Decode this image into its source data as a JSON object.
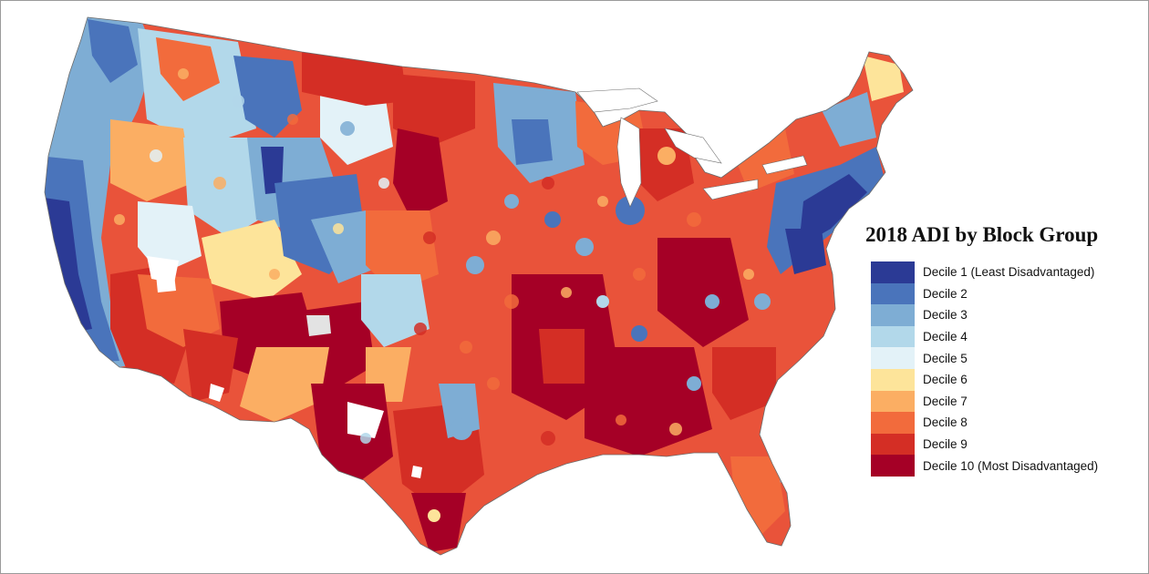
{
  "legend": {
    "title": "2018 ADI by Block Group",
    "items": [
      {
        "label": "Decile 1 (Least Disadvantaged)",
        "color": "#2b3a95"
      },
      {
        "label": "Decile 2",
        "color": "#4a74bb"
      },
      {
        "label": "Decile 3",
        "color": "#7eadd4"
      },
      {
        "label": "Decile 4",
        "color": "#b2d8ea"
      },
      {
        "label": "Decile 5",
        "color": "#e3f2f8"
      },
      {
        "label": "Decile 6",
        "color": "#fde49a"
      },
      {
        "label": "Decile 7",
        "color": "#fbae63"
      },
      {
        "label": "Decile 8",
        "color": "#f26b3c"
      },
      {
        "label": "Decile 9",
        "color": "#d42e25"
      },
      {
        "label": "Decile 10 (Most Disadvantaged)",
        "color": "#a50026"
      }
    ]
  }
}
